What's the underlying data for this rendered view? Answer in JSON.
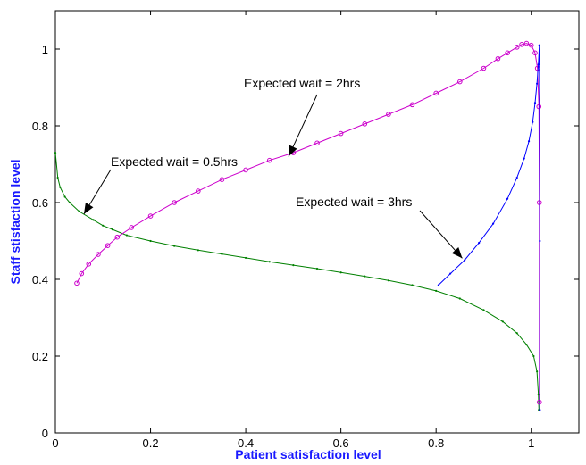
{
  "chart_data": {
    "type": "line",
    "title": "",
    "xlabel": "Patient satisfaction level",
    "ylabel": "Staff stisfaction level",
    "xlim": [
      0,
      1.1
    ],
    "ylim": [
      0,
      1.1
    ],
    "x_ticks": [
      "0",
      "0.2",
      "0.4",
      "0.6",
      "0.8",
      "1"
    ],
    "y_ticks": [
      "0",
      "0.2",
      "0.4",
      "0.6",
      "0.8",
      "1"
    ],
    "grid": false,
    "label_color": "#1a1aff",
    "series": [
      {
        "color": "#008000",
        "marker": "dot",
        "x": [
          0.0,
          0.005,
          0.01,
          0.02,
          0.03,
          0.05,
          0.08,
          0.1,
          0.12,
          0.15,
          0.2,
          0.25,
          0.3,
          0.35,
          0.4,
          0.45,
          0.5,
          0.55,
          0.6,
          0.65,
          0.7,
          0.75,
          0.8,
          0.85,
          0.9,
          0.94,
          0.97,
          0.99,
          1.005,
          1.012,
          1.015,
          1.016
        ],
        "y": [
          0.73,
          0.665,
          0.64,
          0.615,
          0.6,
          0.577,
          0.555,
          0.54,
          0.53,
          0.515,
          0.5,
          0.487,
          0.476,
          0.466,
          0.456,
          0.446,
          0.437,
          0.428,
          0.418,
          0.408,
          0.397,
          0.385,
          0.37,
          0.35,
          0.32,
          0.29,
          0.26,
          0.23,
          0.2,
          0.16,
          0.1,
          0.06
        ]
      },
      {
        "color": "#cc00cc",
        "marker": "circle",
        "x": [
          0.045,
          0.055,
          0.07,
          0.09,
          0.11,
          0.13,
          0.16,
          0.2,
          0.25,
          0.3,
          0.35,
          0.4,
          0.45,
          0.5,
          0.55,
          0.6,
          0.65,
          0.7,
          0.75,
          0.8,
          0.85,
          0.9,
          0.93,
          0.95,
          0.97,
          0.98,
          0.99,
          1.0,
          1.008,
          1.013,
          1.016,
          1.017,
          1.017
        ],
        "y": [
          0.39,
          0.415,
          0.44,
          0.465,
          0.488,
          0.51,
          0.535,
          0.565,
          0.6,
          0.63,
          0.66,
          0.685,
          0.71,
          0.73,
          0.755,
          0.78,
          0.805,
          0.83,
          0.855,
          0.885,
          0.915,
          0.95,
          0.975,
          0.99,
          1.005,
          1.012,
          1.015,
          1.01,
          0.99,
          0.95,
          0.85,
          0.6,
          0.08
        ]
      },
      {
        "color": "#0000ff",
        "marker": "dot",
        "x": [
          0.805,
          0.83,
          0.86,
          0.89,
          0.92,
          0.95,
          0.97,
          0.985,
          0.995,
          1.003,
          1.008,
          1.012,
          1.015,
          1.017,
          1.018,
          1.018
        ],
        "y": [
          0.385,
          0.415,
          0.45,
          0.495,
          0.545,
          0.61,
          0.665,
          0.715,
          0.76,
          0.81,
          0.86,
          0.91,
          0.96,
          1.01,
          0.5,
          0.06
        ]
      }
    ],
    "annotations": [
      {
        "text": "Expected wait = 2hrs",
        "target_x": 0.49,
        "target_y": 0.72
      },
      {
        "text": "Expected wait = 0.5hrs",
        "target_x": 0.06,
        "target_y": 0.57
      },
      {
        "text": "Expected wait = 3hrs",
        "target_x": 0.855,
        "target_y": 0.455
      }
    ]
  }
}
